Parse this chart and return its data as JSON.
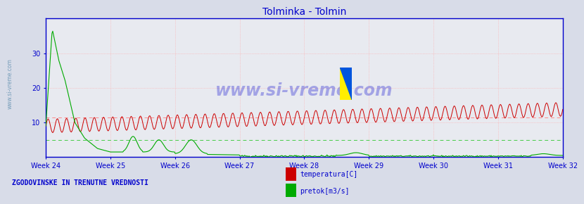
{
  "title": "Tolminka - Tolmin",
  "title_color": "#0000cc",
  "bg_color": "#d8dce8",
  "plot_bg_color": "#e8eaf0",
  "axis_color": "#0000cc",
  "watermark": "www.si-vreme.com",
  "watermark_color": "#0000cc",
  "ylim": [
    0,
    40
  ],
  "yticks": [
    10,
    20,
    30
  ],
  "xlabel_color": "#0000cc",
  "week_labels": [
    "Week 24",
    "Week 25",
    "Week 26",
    "Week 27",
    "Week 28",
    "Week 29",
    "Week 30",
    "Week 31",
    "Week 32"
  ],
  "n_points": 672,
  "temp_color": "#cc0000",
  "flow_color": "#00aa00",
  "hline_temp": 11.5,
  "hline_flow": 5.0,
  "hline_temp_color": "#ff8888",
  "hline_flow_color": "#44cc44",
  "legend_text1": "temperatura[C]",
  "legend_text2": "pretok[m3/s]",
  "footer_text": "ZGODOVINSKE IN TRENUTNE VREDNOSTI",
  "footer_color": "#0000cc",
  "grid_h_color": "#ffaaaa",
  "grid_v_color": "#ffaaaa",
  "sidebar_text": "www.si-vreme.com",
  "sidebar_color": "#5588aa"
}
